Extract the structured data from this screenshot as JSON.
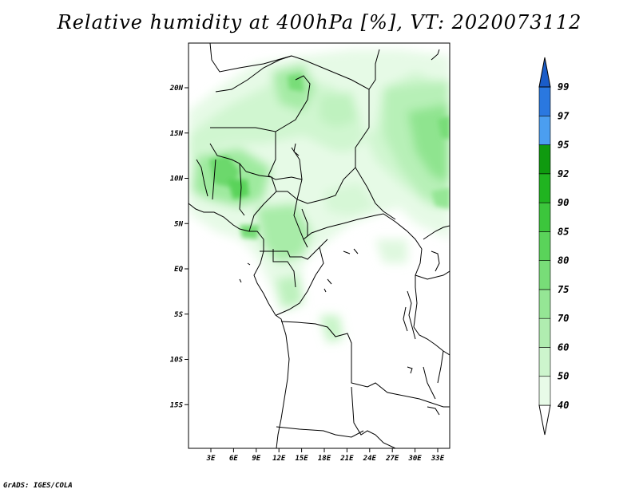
{
  "title": "Relative humidity at 400hPa [%], VT: 2020073112",
  "credit": "GrADS: IGES/COLA",
  "map": {
    "lat_labels": [
      "20N",
      "15N",
      "10N",
      "5N",
      "EQ",
      "5S",
      "10S",
      "15S"
    ],
    "lon_labels": [
      "3E",
      "6E",
      "9E",
      "12E",
      "15E",
      "18E",
      "21E",
      "24E",
      "27E",
      "30E",
      "33E"
    ]
  },
  "colorbar": {
    "levels": [
      "40",
      "50",
      "60",
      "70",
      "75",
      "80",
      "85",
      "90",
      "92",
      "95",
      "97",
      "99"
    ],
    "colors": [
      "#ffffff",
      "#e8fbe8",
      "#cdf5cd",
      "#b0edb0",
      "#95e695",
      "#78dd78",
      "#5ad35a",
      "#3cc63c",
      "#20b420",
      "#0f9a0f",
      "#4b9ef0",
      "#2a78e0",
      "#1a5cc8"
    ]
  }
}
